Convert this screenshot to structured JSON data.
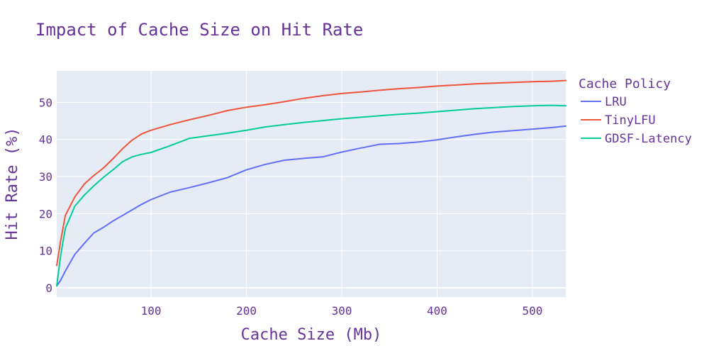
{
  "chart_data": {
    "type": "line",
    "title": "Impact of Cache Size on Hit Rate",
    "xlabel": "Cache Size (Mb)",
    "ylabel": "Hit Rate (%)",
    "xlim": [
      1,
      535
    ],
    "ylim": [
      -2.5,
      58.5
    ],
    "xticks": [
      100,
      200,
      300,
      400,
      500
    ],
    "yticks": [
      0,
      10,
      20,
      30,
      40,
      50
    ],
    "grid": true,
    "legend": {
      "title": "Cache Policy",
      "position": "right"
    },
    "x": [
      1,
      5,
      10,
      20,
      30,
      40,
      50,
      60,
      70,
      80,
      90,
      100,
      120,
      140,
      160,
      180,
      200,
      220,
      240,
      260,
      280,
      300,
      320,
      340,
      360,
      380,
      400,
      420,
      440,
      460,
      480,
      500,
      520,
      535
    ],
    "series": [
      {
        "name": "LRU",
        "color": "#636efa",
        "values": [
          0.5,
          2.0,
          4.5,
          9.0,
          12.0,
          14.8,
          16.3,
          18.0,
          19.5,
          21.0,
          22.5,
          23.8,
          25.8,
          27.0,
          28.3,
          29.7,
          31.8,
          33.3,
          34.4,
          34.9,
          35.3,
          36.6,
          37.7,
          38.7,
          38.9,
          39.3,
          39.9,
          40.7,
          41.4,
          42.0,
          42.4,
          42.8,
          43.2,
          43.6
        ]
      },
      {
        "name": "TinyLFU",
        "color": "#ef553b",
        "values": [
          6.0,
          12.5,
          19.5,
          24.5,
          28.0,
          30.3,
          32.3,
          34.8,
          37.5,
          39.8,
          41.5,
          42.5,
          44.0,
          45.3,
          46.5,
          47.8,
          48.7,
          49.4,
          50.2,
          51.1,
          51.8,
          52.4,
          52.8,
          53.3,
          53.7,
          54.0,
          54.4,
          54.7,
          55.0,
          55.2,
          55.4,
          55.6,
          55.7,
          55.9
        ]
      },
      {
        "name": "GDSF-Latency",
        "color": "#00cc96",
        "values": [
          0.5,
          8.5,
          16.0,
          22.0,
          25.0,
          27.5,
          29.8,
          31.8,
          34.0,
          35.3,
          36.0,
          36.5,
          38.3,
          40.3,
          41.0,
          41.7,
          42.5,
          43.4,
          44.0,
          44.6,
          45.1,
          45.6,
          46.0,
          46.4,
          46.8,
          47.1,
          47.5,
          47.9,
          48.3,
          48.6,
          48.9,
          49.1,
          49.2,
          49.1
        ]
      }
    ]
  }
}
